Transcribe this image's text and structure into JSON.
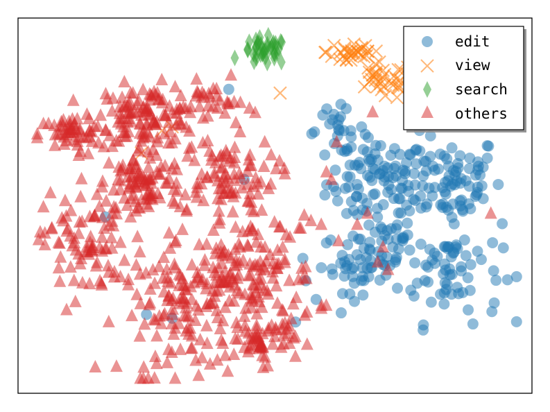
{
  "chart_data": {
    "type": "scatter",
    "title": "",
    "xlabel": "",
    "ylabel": "",
    "xlim": [
      0,
      100
    ],
    "ylim": [
      0,
      100
    ],
    "grid": false,
    "axis_ticks": false,
    "legend": {
      "placement": "top-right",
      "shadow": true,
      "entries": [
        "edit",
        "view",
        "search",
        "others"
      ]
    },
    "series": [
      {
        "name": "edit",
        "marker": "circle",
        "color": "#1f77b4",
        "opacity": 0.5,
        "clusters": [
          {
            "cx": 70,
            "cy": 56,
            "sx": 5,
            "sy": 6,
            "n": 90
          },
          {
            "cx": 84,
            "cy": 57,
            "sx": 5,
            "sy": 6,
            "n": 80
          },
          {
            "cx": 84,
            "cy": 33,
            "sx": 5,
            "sy": 7,
            "n": 70
          },
          {
            "cx": 67,
            "cy": 35,
            "sx": 4,
            "sy": 4,
            "n": 50
          },
          {
            "cx": 62,
            "cy": 70,
            "sx": 3,
            "sy": 3,
            "n": 25
          },
          {
            "cx": 73,
            "cy": 39,
            "sx": 3,
            "sy": 3,
            "n": 20
          }
        ],
        "points": [
          [
            41,
            81
          ],
          [
            44,
            57
          ],
          [
            58,
            25
          ],
          [
            56,
            30
          ],
          [
            54,
            19
          ],
          [
            30,
            20
          ],
          [
            25,
            21
          ],
          [
            17,
            47
          ]
        ]
      },
      {
        "name": "view",
        "marker": "x",
        "color": "#ff7f0e",
        "opacity": 0.5,
        "clusters": [
          {
            "cx": 65,
            "cy": 91,
            "sx": 2.5,
            "sy": 2,
            "n": 30
          },
          {
            "cx": 71,
            "cy": 83,
            "sx": 3,
            "sy": 2.5,
            "n": 35
          }
        ],
        "points": [
          [
            51,
            80
          ],
          [
            28,
            70
          ],
          [
            24,
            64
          ],
          [
            30,
            71
          ]
        ]
      },
      {
        "name": "search",
        "marker": "diamond",
        "color": "#2ca02c",
        "opacity": 0.5,
        "clusters": [
          {
            "cx": 48,
            "cy": 91,
            "sx": 2.2,
            "sy": 1.8,
            "n": 40
          }
        ],
        "points": []
      },
      {
        "name": "others",
        "marker": "triangle",
        "color": "#d62728",
        "opacity": 0.5,
        "clusters": [
          {
            "cx": 25,
            "cy": 74,
            "sx": 5,
            "sy": 4,
            "n": 120
          },
          {
            "cx": 10,
            "cy": 69,
            "sx": 3,
            "sy": 2.5,
            "n": 50
          },
          {
            "cx": 24,
            "cy": 56,
            "sx": 4,
            "sy": 5,
            "n": 90
          },
          {
            "cx": 40,
            "cy": 58,
            "sx": 5,
            "sy": 5,
            "n": 90
          },
          {
            "cx": 13,
            "cy": 40,
            "sx": 4,
            "sy": 7,
            "n": 80
          },
          {
            "cx": 44,
            "cy": 31,
            "sx": 7,
            "sy": 8,
            "n": 170
          },
          {
            "cx": 32,
            "cy": 21,
            "sx": 6,
            "sy": 8,
            "n": 110
          },
          {
            "cx": 48,
            "cy": 14,
            "sx": 3,
            "sy": 3,
            "n": 45
          },
          {
            "cx": 38,
            "cy": 77,
            "sx": 3,
            "sy": 3,
            "n": 30
          }
        ],
        "points": [
          [
            61,
            57
          ],
          [
            60,
            59
          ],
          [
            66,
            45
          ],
          [
            68,
            48
          ],
          [
            70,
            35
          ],
          [
            71,
            39
          ],
          [
            72,
            33
          ],
          [
            69,
            75
          ],
          [
            62,
            67
          ],
          [
            92,
            48
          ],
          [
            57,
            46
          ],
          [
            59,
            45
          ],
          [
            55,
            44
          ]
        ]
      }
    ]
  }
}
